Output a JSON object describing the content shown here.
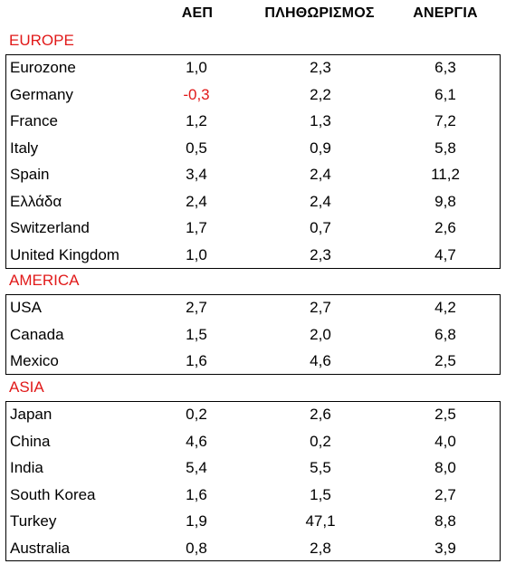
{
  "headers": {
    "col1": "ΑΕΠ",
    "col2": "ΠΛΗΘΩΡΙΣΜΟΣ",
    "col3": "ΑΝΕΡΓΙΑ"
  },
  "accent_color": "#e11919",
  "regions": [
    {
      "name": "EUROPE",
      "rows": [
        {
          "country": "Eurozone",
          "gdp": "1,0",
          "inflation": "2,3",
          "unemployment": "6,3"
        },
        {
          "country": "Germany",
          "gdp": "-0,3",
          "inflation": "2,2",
          "unemployment": "6,1"
        },
        {
          "country": "France",
          "gdp": "1,2",
          "inflation": "1,3",
          "unemployment": "7,2"
        },
        {
          "country": "Italy",
          "gdp": "0,5",
          "inflation": "0,9",
          "unemployment": "5,8"
        },
        {
          "country": "Spain",
          "gdp": "3,4",
          "inflation": "2,4",
          "unemployment": "11,2"
        },
        {
          "country": "Ελλάδα",
          "gdp": "2,4",
          "inflation": "2,4",
          "unemployment": "9,8"
        },
        {
          "country": "Switzerland",
          "gdp": "1,7",
          "inflation": "0,7",
          "unemployment": "2,6"
        },
        {
          "country": "United Kingdom",
          "gdp": "1,0",
          "inflation": "2,3",
          "unemployment": "4,7"
        }
      ]
    },
    {
      "name": "AMERICA",
      "rows": [
        {
          "country": "USA",
          "gdp": "2,7",
          "inflation": "2,7",
          "unemployment": "4,2"
        },
        {
          "country": "Canada",
          "gdp": "1,5",
          "inflation": "2,0",
          "unemployment": "6,8"
        },
        {
          "country": "Mexico",
          "gdp": "1,6",
          "inflation": "4,6",
          "unemployment": "2,5"
        }
      ]
    },
    {
      "name": "ASIA",
      "rows": [
        {
          "country": "Japan",
          "gdp": "0,2",
          "inflation": "2,6",
          "unemployment": "2,5"
        },
        {
          "country": "China",
          "gdp": "4,6",
          "inflation": "0,2",
          "unemployment": "4,0"
        },
        {
          "country": "India",
          "gdp": "5,4",
          "inflation": "5,5",
          "unemployment": "8,0"
        },
        {
          "country": "South Korea",
          "gdp": "1,6",
          "inflation": "1,5",
          "unemployment": "2,7"
        },
        {
          "country": "Turkey",
          "gdp": "1,9",
          "inflation": "47,1",
          "unemployment": "8,8"
        },
        {
          "country": "Australia",
          "gdp": "0,8",
          "inflation": "2,8",
          "unemployment": "3,9"
        }
      ]
    }
  ]
}
